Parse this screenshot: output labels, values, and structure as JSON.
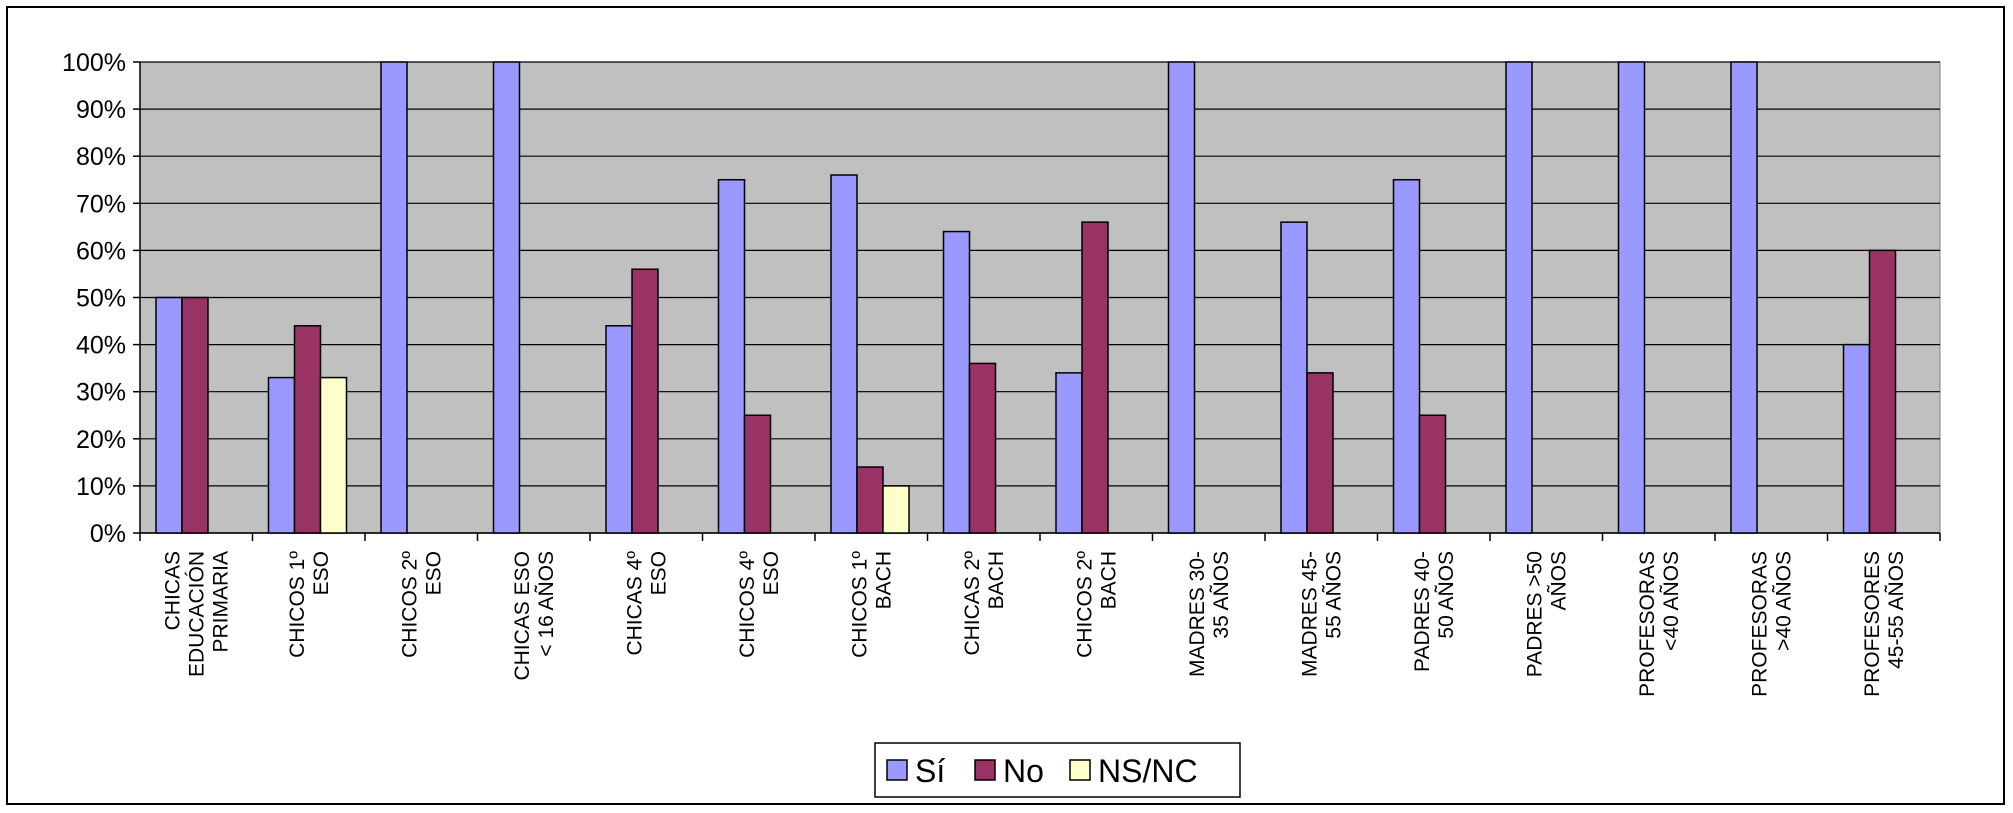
{
  "chart_data": {
    "type": "bar",
    "title": "",
    "xlabel": "",
    "ylabel": "",
    "ylim": [
      0,
      100
    ],
    "y_ticks": [
      "0%",
      "10%",
      "20%",
      "30%",
      "40%",
      "50%",
      "60%",
      "70%",
      "80%",
      "90%",
      "100%"
    ],
    "grid": true,
    "legend_position": "bottom",
    "plot_background": "#c0c0c0",
    "categories": [
      [
        "CHICAS",
        "EDUCACIÓN",
        "PRIMARIA"
      ],
      [
        "CHICOS 1º",
        "ESO"
      ],
      [
        "CHICOS 2º",
        "ESO"
      ],
      [
        "CHICAS ESO",
        "< 16 AÑOS"
      ],
      [
        "CHICAS 4º",
        "ESO"
      ],
      [
        "CHICOS 4º",
        "ESO"
      ],
      [
        "CHICOS 1º",
        "BACH"
      ],
      [
        "CHICAS 2º",
        "BACH"
      ],
      [
        "CHICOS 2º",
        "BACH"
      ],
      [
        "MADRES 30-",
        "35 AÑOS"
      ],
      [
        "MADRES 45-",
        "55 AÑOS"
      ],
      [
        "PADRES 40-",
        "50 AÑOS"
      ],
      [
        "PADRES >50",
        "AÑOS"
      ],
      [
        "PROFESORAS",
        "<40 AÑOS"
      ],
      [
        "PROFESORAS",
        ">40 AÑOS"
      ],
      [
        "PROFESORES",
        "45-55 AÑOS"
      ]
    ],
    "series": [
      {
        "name": "Sí",
        "color": "#9999ff",
        "values": [
          50,
          33,
          100,
          100,
          44,
          75,
          76,
          64,
          34,
          100,
          66,
          75,
          100,
          100,
          100,
          40
        ]
      },
      {
        "name": "No",
        "color": "#993366",
        "values": [
          50,
          44,
          null,
          null,
          56,
          25,
          14,
          36,
          66,
          null,
          34,
          25,
          null,
          null,
          null,
          60
        ]
      },
      {
        "name": "NS/NC",
        "color": "#ffffcc",
        "values": [
          null,
          33,
          null,
          null,
          null,
          null,
          10,
          null,
          null,
          null,
          null,
          null,
          null,
          null,
          null,
          null
        ]
      }
    ]
  }
}
